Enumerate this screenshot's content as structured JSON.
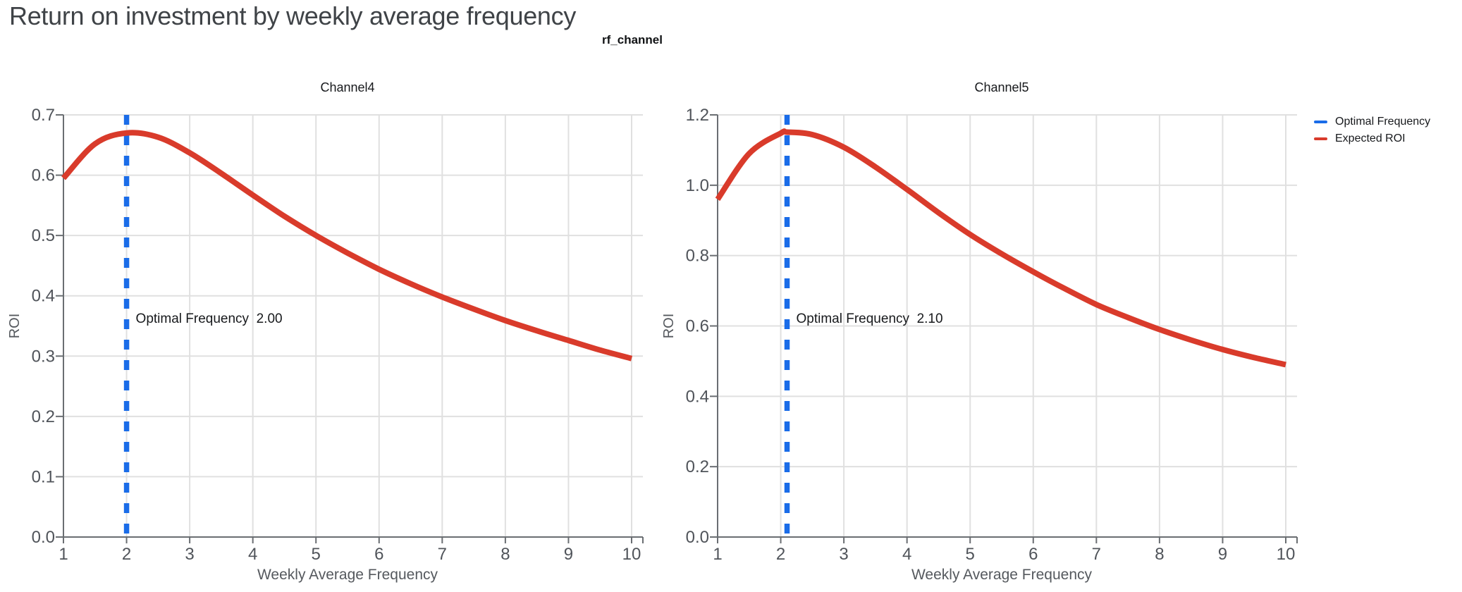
{
  "page_title": "Return on investment by weekly average frequency",
  "suptitle": "rf_channel",
  "legend": {
    "items": [
      {
        "label": "Optimal Frequency",
        "color": "#1a6ce8"
      },
      {
        "label": "Expected ROI",
        "color": "#d93b2b"
      }
    ]
  },
  "colors": {
    "optimal_line": "#1a6ce8",
    "roi_line": "#d93b2b",
    "grid": "#e0e0e0",
    "axis": "#6a6e72",
    "tick_label": "#50545a",
    "axis_title": "#55595e",
    "facet_title": "#17191c",
    "annotation_text": "#17191c"
  },
  "chart_data": [
    {
      "type": "line",
      "facet_title": "Channel4",
      "xlabel": "Weekly Average Frequency",
      "ylabel": "ROI",
      "xlim": [
        1,
        10
      ],
      "ylim": [
        0,
        0.7
      ],
      "xticks": [
        "1",
        "2",
        "3",
        "4",
        "5",
        "6",
        "7",
        "8",
        "9",
        "10"
      ],
      "yticks": [
        "0.0",
        "0.1",
        "0.2",
        "0.3",
        "0.4",
        "0.5",
        "0.6",
        "0.7"
      ],
      "grid": true,
      "legend_position": "top-right",
      "optimal_frequency": 2.0,
      "annotation": "Optimal Frequency  2.00",
      "series": [
        {
          "name": "Expected ROI",
          "x": [
            1,
            1.5,
            2,
            2.5,
            3,
            3.5,
            4,
            4.5,
            5,
            5.5,
            6,
            6.5,
            7,
            7.5,
            8,
            8.5,
            9,
            9.5,
            10
          ],
          "y": [
            0.595,
            0.652,
            0.67,
            0.663,
            0.637,
            0.603,
            0.567,
            0.532,
            0.5,
            0.471,
            0.444,
            0.42,
            0.398,
            0.378,
            0.359,
            0.342,
            0.326,
            0.31,
            0.296
          ]
        }
      ]
    },
    {
      "type": "line",
      "facet_title": "Channel5",
      "xlabel": "Weekly Average Frequency",
      "ylabel": "ROI",
      "xlim": [
        1,
        10
      ],
      "ylim": [
        0,
        1.2
      ],
      "xticks": [
        "1",
        "2",
        "3",
        "4",
        "5",
        "6",
        "7",
        "8",
        "9",
        "10"
      ],
      "yticks": [
        "0.0",
        "0.2",
        "0.4",
        "0.6",
        "0.8",
        "1.0",
        "1.2"
      ],
      "grid": true,
      "legend_position": "top-right",
      "optimal_frequency": 2.1,
      "annotation": "Optimal Frequency  2.10",
      "series": [
        {
          "name": "Expected ROI",
          "x": [
            1,
            1.5,
            2,
            2.1,
            2.5,
            3,
            3.5,
            4,
            4.5,
            5,
            5.5,
            6,
            6.5,
            7,
            7.5,
            8,
            8.5,
            9,
            9.5,
            10
          ],
          "y": [
            0.96,
            1.09,
            1.148,
            1.151,
            1.144,
            1.108,
            1.052,
            0.988,
            0.922,
            0.86,
            0.805,
            0.754,
            0.706,
            0.661,
            0.624,
            0.59,
            0.56,
            0.533,
            0.51,
            0.49
          ]
        }
      ]
    }
  ]
}
